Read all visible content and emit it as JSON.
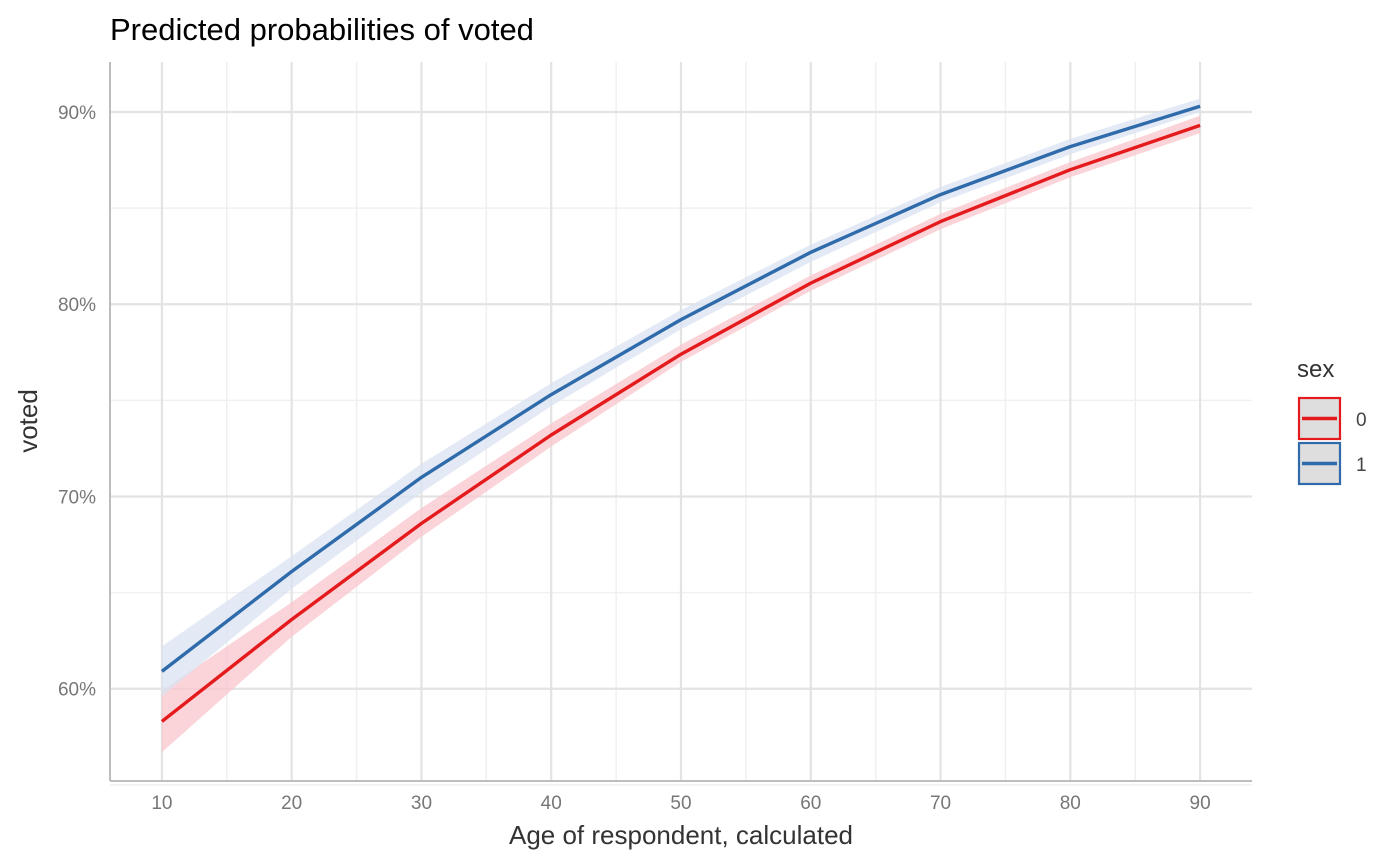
{
  "chart_data": {
    "type": "line",
    "title": "Predicted probabilities of voted",
    "xlabel": "Age of respondent, calculated",
    "ylabel": "voted",
    "xlim": [
      6,
      94
    ],
    "ylim": [
      0.552,
      0.926
    ],
    "x_ticks": [
      10,
      20,
      30,
      40,
      50,
      60,
      70,
      80,
      90
    ],
    "x_tick_labels": [
      "10",
      "20",
      "30",
      "40",
      "50",
      "60",
      "70",
      "80",
      "90"
    ],
    "y_ticks": [
      0.6,
      0.7,
      0.8,
      0.9
    ],
    "y_tick_labels": [
      "60%",
      "70%",
      "80%",
      "90%"
    ],
    "grid": true,
    "legend": {
      "title": "sex",
      "position": "right"
    },
    "series": [
      {
        "name": "0",
        "color": "#E41A1C",
        "band_color": "#F8C6CC",
        "x": [
          10,
          20,
          30,
          40,
          50,
          60,
          70,
          80,
          90
        ],
        "y": [
          0.583,
          0.636,
          0.686,
          0.732,
          0.774,
          0.811,
          0.843,
          0.87,
          0.893
        ],
        "lower": [
          0.567,
          0.627,
          0.679,
          0.726,
          0.77,
          0.807,
          0.839,
          0.866,
          0.889
        ],
        "upper": [
          0.599,
          0.645,
          0.694,
          0.738,
          0.779,
          0.815,
          0.847,
          0.874,
          0.898
        ]
      },
      {
        "name": "1",
        "color": "#2F6BAA",
        "band_color": "#D9E3F1",
        "x": [
          10,
          20,
          30,
          40,
          50,
          60,
          70,
          80,
          90
        ],
        "y": [
          0.609,
          0.661,
          0.71,
          0.753,
          0.792,
          0.827,
          0.857,
          0.882,
          0.903
        ],
        "lower": [
          0.596,
          0.652,
          0.702,
          0.747,
          0.787,
          0.822,
          0.853,
          0.878,
          0.9
        ],
        "upper": [
          0.622,
          0.669,
          0.717,
          0.759,
          0.797,
          0.831,
          0.861,
          0.886,
          0.907
        ]
      }
    ]
  }
}
